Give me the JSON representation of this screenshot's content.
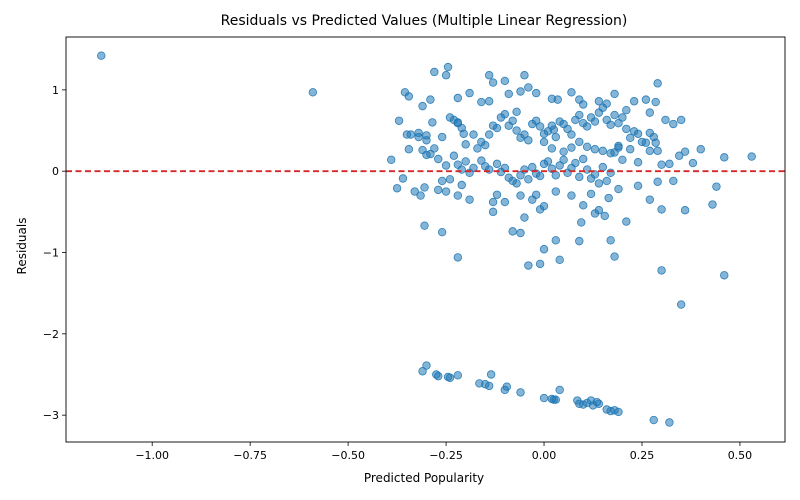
{
  "chart_data": {
    "type": "scatter",
    "title": "Residuals vs Predicted Values (Multiple Linear Regression)",
    "xlabel": "Predicted Popularity",
    "ylabel": "Residuals",
    "xlim": [
      -1.22,
      0.615
    ],
    "ylim": [
      -3.33,
      1.65
    ],
    "xticks": [
      -1.0,
      -0.75,
      -0.5,
      -0.25,
      0.0,
      0.25,
      0.5
    ],
    "xtick_labels": [
      "−1.00",
      "−0.75",
      "−0.50",
      "−0.25",
      "0.00",
      "0.25",
      "0.50"
    ],
    "yticks": [
      -3,
      -2,
      -1,
      0,
      1
    ],
    "ytick_labels": [
      "−3",
      "−2",
      "−1",
      "0",
      "1"
    ],
    "grid": false,
    "reference_line": {
      "y": 0,
      "color": "#d62728",
      "style": "dashed"
    },
    "marker_color": "#1f77b4",
    "marker_alpha": 0.55,
    "points": [
      [
        -1.13,
        1.42
      ],
      [
        -0.59,
        0.97
      ],
      [
        -0.28,
        1.22
      ],
      [
        -0.245,
        1.28
      ],
      [
        -0.25,
        1.18
      ],
      [
        -0.355,
        0.97
      ],
      [
        -0.345,
        0.92
      ],
      [
        -0.29,
        0.88
      ],
      [
        -0.31,
        0.8
      ],
      [
        -0.37,
        0.62
      ],
      [
        -0.34,
        0.45
      ],
      [
        -0.32,
        0.42
      ],
      [
        -0.3,
        0.38
      ],
      [
        -0.345,
        0.27
      ],
      [
        -0.31,
        0.26
      ],
      [
        -0.29,
        0.21
      ],
      [
        -0.27,
        0.15
      ],
      [
        -0.39,
        0.14
      ],
      [
        -0.26,
        0.42
      ],
      [
        -0.285,
        0.6
      ],
      [
        -0.24,
        0.66
      ],
      [
        -0.22,
        0.6
      ],
      [
        -0.21,
        0.53
      ],
      [
        -0.205,
        0.46
      ],
      [
        -0.22,
        0.9
      ],
      [
        -0.19,
        0.96
      ],
      [
        -0.16,
        0.85
      ],
      [
        -0.14,
        0.86
      ],
      [
        -0.14,
        1.18
      ],
      [
        -0.13,
        1.09
      ],
      [
        -0.1,
        1.11
      ],
      [
        -0.09,
        0.95
      ],
      [
        -0.06,
        0.98
      ],
      [
        -0.05,
        1.18
      ],
      [
        -0.04,
        1.03
      ],
      [
        -0.02,
        0.96
      ],
      [
        0.02,
        0.89
      ],
      [
        0.035,
        0.88
      ],
      [
        0.07,
        0.97
      ],
      [
        0.09,
        0.88
      ],
      [
        0.1,
        0.82
      ],
      [
        0.14,
        0.86
      ],
      [
        0.16,
        0.83
      ],
      [
        0.18,
        0.95
      ],
      [
        0.21,
        0.75
      ],
      [
        0.23,
        0.86
      ],
      [
        0.26,
        0.88
      ],
      [
        0.285,
        0.85
      ],
      [
        0.29,
        1.08
      ],
      [
        0.27,
        0.72
      ],
      [
        0.31,
        0.63
      ],
      [
        0.33,
        0.58
      ],
      [
        0.35,
        0.63
      ],
      [
        0.36,
        0.24
      ],
      [
        0.38,
        0.1
      ],
      [
        0.4,
        0.27
      ],
      [
        0.345,
        0.19
      ],
      [
        0.285,
        0.35
      ],
      [
        0.3,
        0.08
      ],
      [
        0.32,
        0.09
      ],
      [
        0.46,
        0.17
      ],
      [
        0.53,
        0.18
      ],
      [
        0.44,
        -0.19
      ],
      [
        0.43,
        -0.41
      ],
      [
        0.36,
        -0.48
      ],
      [
        0.3,
        -0.47
      ],
      [
        0.33,
        -0.12
      ],
      [
        0.29,
        -0.13
      ],
      [
        0.27,
        -0.35
      ],
      [
        0.24,
        -0.18
      ],
      [
        0.21,
        -0.62
      ],
      [
        0.19,
        -0.22
      ],
      [
        0.165,
        -0.33
      ],
      [
        0.155,
        -0.55
      ],
      [
        0.14,
        -0.48
      ],
      [
        0.13,
        -0.52
      ],
      [
        0.12,
        -0.28
      ],
      [
        0.1,
        -0.42
      ],
      [
        0.095,
        -0.63
      ],
      [
        0.09,
        -0.86
      ],
      [
        0.17,
        -0.85
      ],
      [
        0.18,
        -1.05
      ],
      [
        0.3,
        -1.22
      ],
      [
        0.46,
        -1.28
      ],
      [
        0.35,
        -1.64
      ],
      [
        0.03,
        -0.85
      ],
      [
        0.04,
        -1.09
      ],
      [
        -0.04,
        -1.16
      ],
      [
        -0.01,
        -1.14
      ],
      [
        0.0,
        -0.96
      ],
      [
        -0.06,
        -0.76
      ],
      [
        -0.08,
        -0.74
      ],
      [
        -0.05,
        -0.57
      ],
      [
        -0.01,
        -0.47
      ],
      [
        0.0,
        -0.43
      ],
      [
        -0.03,
        -0.35
      ],
      [
        -0.02,
        -0.29
      ],
      [
        0.03,
        -0.25
      ],
      [
        0.07,
        -0.3
      ],
      [
        -0.06,
        -0.3
      ],
      [
        -0.1,
        -0.38
      ],
      [
        -0.13,
        -0.5
      ],
      [
        -0.12,
        -0.29
      ],
      [
        -0.13,
        -0.38
      ],
      [
        -0.22,
        -0.3
      ],
      [
        -0.19,
        -0.35
      ],
      [
        -0.21,
        -0.17
      ],
      [
        -0.24,
        -0.1
      ],
      [
        -0.25,
        -0.25
      ],
      [
        -0.27,
        -0.23
      ],
      [
        -0.33,
        -0.25
      ],
      [
        -0.315,
        -0.3
      ],
      [
        -0.36,
        -0.09
      ],
      [
        -0.375,
        -0.21
      ],
      [
        -0.305,
        -0.2
      ],
      [
        -0.305,
        -0.67
      ],
      [
        -0.26,
        -0.75
      ],
      [
        -0.22,
        -1.06
      ],
      [
        -0.35,
        0.45
      ],
      [
        -0.32,
        0.47
      ],
      [
        -0.3,
        0.44
      ],
      [
        -0.23,
        0.63
      ],
      [
        -0.22,
        0.59
      ],
      [
        -0.2,
        0.33
      ],
      [
        -0.18,
        0.45
      ],
      [
        -0.17,
        0.28
      ],
      [
        -0.16,
        0.36
      ],
      [
        -0.15,
        0.32
      ],
      [
        -0.14,
        0.45
      ],
      [
        -0.13,
        0.56
      ],
      [
        -0.12,
        0.53
      ],
      [
        -0.11,
        0.66
      ],
      [
        -0.1,
        0.7
      ],
      [
        -0.09,
        0.56
      ],
      [
        -0.08,
        0.62
      ],
      [
        -0.07,
        0.73
      ],
      [
        -0.07,
        0.5
      ],
      [
        -0.06,
        0.41
      ],
      [
        -0.05,
        0.45
      ],
      [
        -0.04,
        0.38
      ],
      [
        -0.03,
        0.58
      ],
      [
        -0.02,
        0.62
      ],
      [
        -0.01,
        0.55
      ],
      [
        0.0,
        0.46
      ],
      [
        0.01,
        0.49
      ],
      [
        0.02,
        0.56
      ],
      [
        0.025,
        0.51
      ],
      [
        0.03,
        0.42
      ],
      [
        0.04,
        0.61
      ],
      [
        0.05,
        0.58
      ],
      [
        0.06,
        0.52
      ],
      [
        0.07,
        0.45
      ],
      [
        0.08,
        0.63
      ],
      [
        0.09,
        0.69
      ],
      [
        0.1,
        0.59
      ],
      [
        0.11,
        0.55
      ],
      [
        0.12,
        0.66
      ],
      [
        0.13,
        0.61
      ],
      [
        0.14,
        0.72
      ],
      [
        0.15,
        0.78
      ],
      [
        0.16,
        0.63
      ],
      [
        0.17,
        0.57
      ],
      [
        0.18,
        0.69
      ],
      [
        0.19,
        0.59
      ],
      [
        0.2,
        0.66
      ],
      [
        0.21,
        0.52
      ],
      [
        0.22,
        0.41
      ],
      [
        0.23,
        0.49
      ],
      [
        0.24,
        0.46
      ],
      [
        0.25,
        0.36
      ],
      [
        0.27,
        0.47
      ],
      [
        0.28,
        0.42
      ],
      [
        0.29,
        0.25
      ],
      [
        -0.3,
        0.2
      ],
      [
        -0.28,
        0.28
      ],
      [
        -0.25,
        0.07
      ],
      [
        -0.23,
        0.19
      ],
      [
        -0.22,
        0.08
      ],
      [
        -0.2,
        0.12
      ],
      [
        -0.18,
        0.04
      ],
      [
        -0.16,
        0.13
      ],
      [
        -0.15,
        0.06
      ],
      [
        -0.14,
        0.02
      ],
      [
        -0.12,
        0.09
      ],
      [
        -0.11,
        -0.01
      ],
      [
        -0.1,
        0.04
      ],
      [
        -0.09,
        -0.08
      ],
      [
        -0.08,
        -0.12
      ],
      [
        -0.07,
        -0.15
      ],
      [
        -0.06,
        -0.05
      ],
      [
        -0.05,
        0.02
      ],
      [
        -0.04,
        -0.1
      ],
      [
        -0.03,
        0.05
      ],
      [
        -0.02,
        -0.03
      ],
      [
        -0.01,
        -0.06
      ],
      [
        0.0,
        0.09
      ],
      [
        0.01,
        0.12
      ],
      [
        0.02,
        0.03
      ],
      [
        0.03,
        -0.05
      ],
      [
        0.04,
        0.07
      ],
      [
        0.05,
        0.14
      ],
      [
        0.06,
        -0.02
      ],
      [
        0.07,
        0.04
      ],
      [
        0.08,
        0.1
      ],
      [
        0.09,
        -0.07
      ],
      [
        0.1,
        0.15
      ],
      [
        0.11,
        0.02
      ],
      [
        0.12,
        -0.09
      ],
      [
        0.13,
        -0.04
      ],
      [
        0.14,
        -0.15
      ],
      [
        0.15,
        0.05
      ],
      [
        0.16,
        -0.12
      ],
      [
        0.17,
        -0.02
      ],
      [
        0.18,
        0.23
      ],
      [
        0.19,
        0.31
      ],
      [
        0.2,
        0.14
      ],
      [
        0.22,
        0.27
      ],
      [
        0.24,
        0.11
      ],
      [
        0.26,
        0.35
      ],
      [
        0.27,
        0.25
      ],
      [
        -0.26,
        -0.12
      ],
      [
        -0.21,
        0.02
      ],
      [
        -0.19,
        -0.02
      ],
      [
        0.0,
        0.36
      ],
      [
        0.02,
        0.28
      ],
      [
        0.05,
        0.24
      ],
      [
        0.07,
        0.29
      ],
      [
        0.09,
        0.36
      ],
      [
        0.11,
        0.3
      ],
      [
        0.13,
        0.27
      ],
      [
        0.15,
        0.25
      ],
      [
        0.17,
        0.22
      ],
      [
        0.19,
        0.29
      ],
      [
        -0.31,
        -2.46
      ],
      [
        -0.3,
        -2.39
      ],
      [
        -0.275,
        -2.5
      ],
      [
        -0.27,
        -2.52
      ],
      [
        -0.245,
        -2.53
      ],
      [
        -0.24,
        -2.54
      ],
      [
        -0.22,
        -2.51
      ],
      [
        -0.165,
        -2.61
      ],
      [
        -0.15,
        -2.62
      ],
      [
        -0.135,
        -2.5
      ],
      [
        -0.14,
        -2.64
      ],
      [
        -0.095,
        -2.65
      ],
      [
        -0.1,
        -2.69
      ],
      [
        -0.06,
        -2.72
      ],
      [
        0.04,
        -2.69
      ],
      [
        0.0,
        -2.79
      ],
      [
        0.02,
        -2.8
      ],
      [
        0.025,
        -2.81
      ],
      [
        0.03,
        -2.81
      ],
      [
        0.085,
        -2.82
      ],
      [
        0.09,
        -2.86
      ],
      [
        0.1,
        -2.87
      ],
      [
        0.11,
        -2.85
      ],
      [
        0.12,
        -2.82
      ],
      [
        0.125,
        -2.88
      ],
      [
        0.135,
        -2.84
      ],
      [
        0.14,
        -2.86
      ],
      [
        0.16,
        -2.93
      ],
      [
        0.17,
        -2.95
      ],
      [
        0.18,
        -2.94
      ],
      [
        0.19,
        -2.96
      ],
      [
        0.28,
        -3.06
      ],
      [
        0.32,
        -3.09
      ]
    ]
  }
}
